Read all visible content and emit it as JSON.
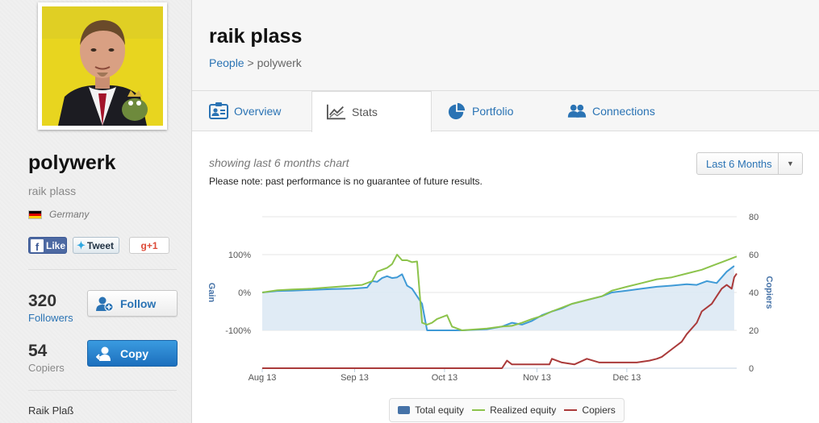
{
  "profile": {
    "username": "polywerk",
    "full_name": "raik plass",
    "country": "Germany",
    "real_name": "Raik Plaß"
  },
  "social": {
    "like_label": "Like",
    "tweet_label": "Tweet",
    "gplus_label": "g+1"
  },
  "stats": {
    "followers_count": "320",
    "followers_label": "Followers",
    "copiers_count": "54",
    "copiers_label": "Copiers"
  },
  "actions": {
    "follow_label": "Follow",
    "copy_label": "Copy"
  },
  "header": {
    "title": "raik plass",
    "breadcrumb_root": "People",
    "breadcrumb_separator": ">",
    "breadcrumb_current": "polywerk"
  },
  "tabs": [
    {
      "label": "Overview",
      "icon": "id-card-icon",
      "active": false
    },
    {
      "label": "Stats",
      "icon": "line-chart-icon",
      "active": true
    },
    {
      "label": "Portfolio",
      "icon": "pie-chart-icon",
      "active": false
    },
    {
      "label": "Connections",
      "icon": "people-icon",
      "active": false
    }
  ],
  "chart_panel": {
    "caption": "showing last 6 months chart",
    "note": "Please note: past performance is no guarantee of future results.",
    "period_selected": "Last 6 Months"
  },
  "colors": {
    "link_blue": "#2a73b4",
    "total_equity": "#3f9ad6",
    "total_equity_fill": "#dbe8f3",
    "realized_equity": "#8cc34b",
    "copiers": "#aa3a3a",
    "copy_button": "#1c6fbd"
  },
  "chart_data": {
    "type": "line",
    "x_ticks": [
      "Aug 13",
      "Sep 13",
      "Oct 13",
      "Nov 13",
      "Dec 13"
    ],
    "y_left": {
      "title": "Gain",
      "ticks": [
        "100%",
        "0%",
        "-100%"
      ],
      "range": [
        -200,
        200
      ]
    },
    "y_right": {
      "title": "Copiers",
      "ticks": [
        "80",
        "60",
        "40",
        "20",
        "0"
      ],
      "range": [
        0,
        80
      ]
    },
    "x_range": [
      0,
      190
    ],
    "grid": true,
    "legend_position": "bottom",
    "series": [
      {
        "name": "Total equity",
        "axis": "left",
        "style": "area",
        "x": [
          0,
          6,
          12,
          20,
          28,
          36,
          42,
          44,
          46,
          48,
          50,
          52,
          54,
          56,
          58,
          60,
          62,
          64,
          66,
          68,
          70,
          72,
          76,
          80,
          90,
          96,
          100,
          104,
          108,
          112,
          116,
          120,
          124,
          130,
          136,
          140,
          146,
          152,
          158,
          164,
          170,
          174,
          178,
          182,
          186,
          189
        ],
        "y": [
          0,
          4,
          5,
          7,
          9,
          10,
          13,
          30,
          28,
          38,
          43,
          38,
          40,
          48,
          18,
          10,
          -10,
          -30,
          -100,
          -100,
          -100,
          -100,
          -100,
          -100,
          -97,
          -90,
          -80,
          -85,
          -75,
          -60,
          -50,
          -42,
          -30,
          -20,
          -10,
          0,
          5,
          10,
          15,
          18,
          22,
          20,
          30,
          25,
          55,
          70
        ]
      },
      {
        "name": "Realized equity",
        "axis": "left",
        "style": "line",
        "x": [
          0,
          6,
          12,
          20,
          28,
          36,
          40,
          44,
          46,
          48,
          50,
          52,
          54,
          56,
          58,
          60,
          62,
          64,
          66,
          68,
          70,
          72,
          74,
          76,
          78,
          80,
          90,
          96,
          100,
          104,
          108,
          112,
          116,
          120,
          124,
          130,
          136,
          140,
          146,
          152,
          158,
          164,
          170,
          176,
          180,
          184,
          188,
          190
        ],
        "y": [
          0,
          6,
          8,
          10,
          14,
          18,
          20,
          30,
          55,
          60,
          65,
          75,
          100,
          85,
          85,
          80,
          82,
          -80,
          -85,
          -80,
          -70,
          -65,
          -60,
          -90,
          -95,
          -100,
          -95,
          -90,
          -88,
          -80,
          -70,
          -62,
          -50,
          -40,
          -30,
          -20,
          -10,
          5,
          15,
          25,
          35,
          40,
          50,
          60,
          70,
          80,
          90,
          95
        ]
      },
      {
        "name": "Copiers",
        "axis": "right",
        "style": "line",
        "x": [
          0,
          20,
          40,
          60,
          80,
          96,
          98,
          100,
          110,
          115,
          116,
          120,
          125,
          130,
          135,
          140,
          145,
          150,
          155,
          158,
          160,
          164,
          168,
          170,
          174,
          176,
          180,
          182,
          184,
          186,
          188,
          189,
          190
        ],
        "y": [
          0,
          0,
          0,
          0,
          0,
          0,
          4,
          2,
          2,
          2,
          5,
          3,
          2,
          5,
          3,
          3,
          3,
          3,
          4,
          5,
          6,
          10,
          14,
          18,
          24,
          30,
          34,
          38,
          42,
          44,
          42,
          48,
          50
        ]
      }
    ]
  }
}
